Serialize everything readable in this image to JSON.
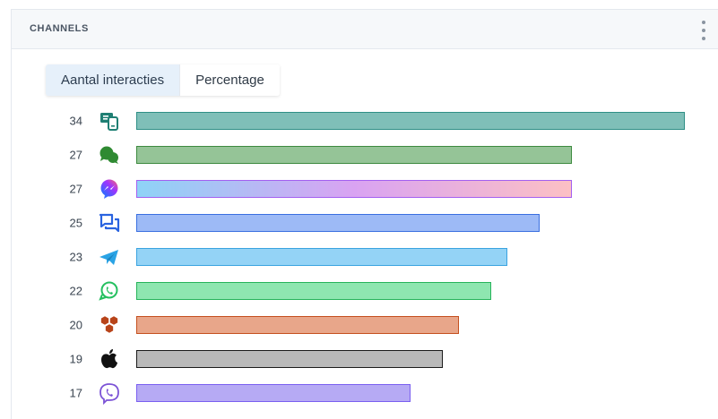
{
  "header": {
    "title": "CHANNELS",
    "menu_icon": "vertical-dots-icon"
  },
  "tabs": [
    {
      "label": "Aantal interacties",
      "active": true
    },
    {
      "label": "Percentage",
      "active": false
    }
  ],
  "chart_data": {
    "type": "bar",
    "orientation": "horizontal",
    "categories": [
      "sms-device",
      "chat-bubbles",
      "messenger",
      "messages",
      "telegram",
      "whatsapp",
      "honeycomb",
      "apple",
      "viber"
    ],
    "values": [
      34,
      27,
      27,
      25,
      23,
      22,
      20,
      19,
      17
    ],
    "colors": [
      "#7fbfb8",
      "#95c497",
      "gradient:#8ed3f7-#d9a3f2-#fcc0c4",
      "#9dbaf6",
      "#94d3f6",
      "#8ee6b0",
      "#e8a68a",
      "#b9b9b9",
      "#b6aaf4"
    ],
    "borders": [
      "#2f8f86",
      "#3d8a3f",
      "#a35ff0",
      "#3a6fe0",
      "#3aa3e0",
      "#26b35a",
      "#c4501f",
      "#1a1a1a",
      "#7a5ff0"
    ],
    "icons": [
      "sms-device-icon",
      "chat-bubble-icon",
      "messenger-icon",
      "messages-icon",
      "telegram-icon",
      "whatsapp-icon",
      "honeycomb-icon",
      "apple-icon",
      "viber-icon"
    ],
    "xlim": [
      0,
      34
    ],
    "grid": false,
    "title": "",
    "xlabel": "",
    "ylabel": ""
  }
}
